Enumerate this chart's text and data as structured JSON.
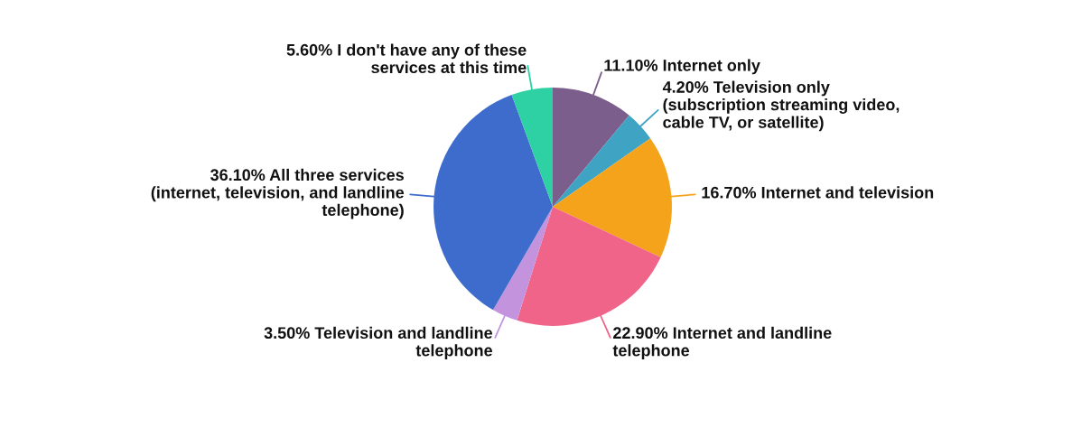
{
  "chart_data": {
    "type": "pie",
    "categories": [
      "Internet only",
      "Television only\n(subscription streaming video,\ncable TV, or satellite)",
      "Internet and television",
      "Internet and landline\ntelephone",
      "Television and landline\ntelephone",
      "All three services\n(internet, television, and landline\ntelephone)",
      "I don't have any of these\nservices at this time"
    ],
    "values": [
      11.1,
      4.2,
      16.7,
      22.9,
      3.5,
      36.1,
      5.6
    ],
    "value_labels": [
      "11.10%",
      "4.20%",
      "16.70%",
      "22.90%",
      "3.50%",
      "36.10%",
      "5.60%"
    ],
    "colors": [
      "#7b5e8c",
      "#3fa3c4",
      "#f5a31b",
      "#f0648a",
      "#c393dd",
      "#3d6ccc",
      "#2dd1a4"
    ],
    "legend": false
  }
}
